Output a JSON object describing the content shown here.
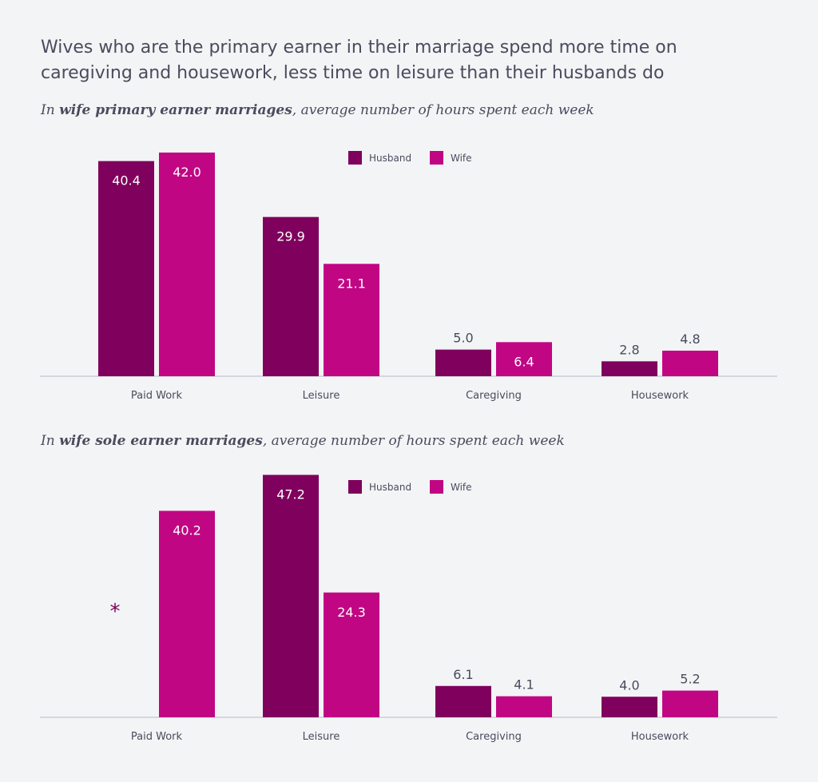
{
  "title": "Wives who are the primary earner in their marriage spend more time on caregiving and housework, less time on leisure than their husbands do",
  "colors": {
    "husband": "#7f005d",
    "wife": "#c10683",
    "background": "#f3f4f6",
    "text": "#4a4b5c"
  },
  "chart_data": [
    {
      "type": "bar",
      "subtitle_prefix": "In ",
      "subtitle_bold": "wife primary earner marriages",
      "subtitle_suffix": ", average number of hours spent each week",
      "categories": [
        "Paid Work",
        "Leisure",
        "Caregiving",
        "Housework"
      ],
      "series": [
        {
          "name": "Husband",
          "values": [
            40.4,
            29.9,
            5.0,
            2.8
          ]
        },
        {
          "name": "Wife",
          "values": [
            42.0,
            21.1,
            6.4,
            4.8
          ]
        }
      ],
      "legend": "top-center",
      "grid": false
    },
    {
      "type": "bar",
      "subtitle_prefix": "In ",
      "subtitle_bold": "wife sole earner marriages",
      "subtitle_suffix": ", average number of hours spent each week",
      "categories": [
        "Paid Work",
        "Leisure",
        "Caregiving",
        "Housework"
      ],
      "series": [
        {
          "name": "Husband",
          "values": [
            null,
            47.2,
            6.1,
            4.0
          ]
        },
        {
          "name": "Wife",
          "values": [
            40.2,
            24.3,
            4.1,
            5.2
          ]
        }
      ],
      "missing_marker": "*",
      "legend": "top-center",
      "grid": false
    }
  ]
}
